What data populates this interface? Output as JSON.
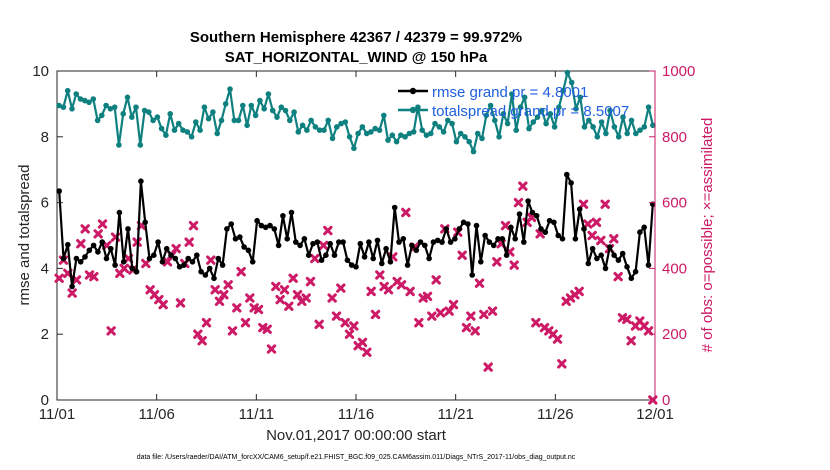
{
  "chart_data": {
    "type": "line",
    "title_line1": "Southern Hemisphere 42367 / 42379 = 99.972%",
    "title_line2": "SAT_HORIZONTAL_WIND @ 150 hPa",
    "xlabel": "Nov.01,2017 00:00:00 start",
    "ylabel_left": "rmse and totalspread",
    "ylabel_right": "# of obs: o=possible; ×=assimilated",
    "footer": "data file: /Users/raeder/DAI/ATM_forcXX/CAM6_setup/f.e21.FHIST_BGC.f09_025.CAM6assim.011/Diags_NTrS_2017-11/obs_diag_output.nc",
    "x_ticks": [
      "11/01",
      "11/06",
      "11/11",
      "11/16",
      "11/21",
      "11/26",
      "12/01"
    ],
    "y_left_ticks": [
      "0",
      "2",
      "4",
      "6",
      "8",
      "10"
    ],
    "y_right_ticks": [
      "0",
      "200",
      "400",
      "600",
      "800",
      "1000"
    ],
    "y_left_lim": [
      0,
      10
    ],
    "y_right_lim": [
      0,
      1000
    ],
    "x_lim": [
      0,
      30
    ],
    "colors": {
      "rmse": "#000000",
      "spread": "#0f8080",
      "obs": "#cc1a66",
      "legend_text": "#1f5fe0"
    },
    "series": [
      {
        "name": "rmse",
        "legend": "rmse grand pr = 4.8001",
        "values": [
          6.35,
          4.3,
          4.72,
          3.45,
          4.3,
          4.2,
          4.35,
          4.55,
          4.7,
          4.5,
          4.8,
          4.3,
          4.6,
          4.1,
          5.7,
          4.2,
          5.2,
          4.0,
          3.9,
          6.65,
          5.4,
          4.3,
          4.4,
          4.8,
          4.2,
          4.6,
          4.4,
          4.3,
          4.05,
          4.1,
          4.3,
          4.2,
          4.4,
          3.9,
          3.8,
          4.0,
          3.7,
          4.3,
          4.1,
          5.2,
          5.35,
          4.9,
          4.95,
          4.65,
          4.55,
          4.2,
          5.45,
          5.3,
          5.25,
          5.3,
          5.2,
          4.7,
          5.6,
          4.9,
          5.7,
          4.8,
          4.7,
          4.9,
          4.4,
          4.75,
          4.8,
          4.25,
          4.4,
          4.75,
          4.4,
          4.8,
          4.8,
          4.25,
          4.1,
          4.05,
          4.75,
          4.35,
          4.8,
          4.3,
          4.85,
          4.15,
          4.6,
          4.2,
          5.85,
          4.8,
          4.9,
          4.1,
          4.7,
          4.55,
          4.8,
          4.7,
          4.3,
          4.8,
          4.85,
          4.8,
          5.2,
          4.8,
          4.9,
          5.2,
          5.4,
          5.35,
          3.8,
          5.3,
          4.2,
          5.0,
          4.8,
          4.7,
          4.9,
          4.9,
          4.4,
          5.25,
          4.9,
          5.65,
          4.8,
          6.05,
          5.7,
          5.6,
          5.2,
          5.1,
          5.45,
          5.4,
          5.0,
          4.9,
          6.85,
          6.6,
          4.9,
          5.8,
          5.2,
          4.15,
          4.6,
          4.3,
          4.4,
          4.0,
          4.65,
          4.4,
          4.25,
          4.45,
          4.05,
          3.7,
          3.9,
          5.1,
          5.25,
          4.1,
          5.95
        ]
      },
      {
        "name": "totalspread",
        "legend": "totalspread grand pr = 8.5007",
        "values": [
          8.95,
          8.9,
          9.4,
          8.85,
          9.3,
          9.15,
          9.1,
          9.05,
          9.15,
          8.5,
          8.65,
          8.95,
          8.85,
          8.9,
          7.75,
          8.7,
          9.2,
          8.6,
          8.9,
          7.75,
          8.8,
          8.75,
          8.5,
          8.6,
          8.25,
          8.05,
          8.7,
          8.2,
          8.4,
          8.2,
          8.15,
          8.0,
          8.45,
          8.2,
          8.9,
          8.55,
          8.75,
          8.1,
          8.5,
          9.0,
          9.45,
          8.5,
          8.5,
          8.95,
          8.35,
          8.95,
          8.65,
          9.1,
          8.85,
          9.3,
          8.8,
          8.6,
          8.9,
          8.8,
          8.5,
          8.75,
          8.15,
          8.35,
          8.2,
          8.5,
          8.3,
          8.2,
          8.2,
          8.5,
          7.95,
          8.3,
          8.4,
          8.45,
          8.0,
          7.65,
          8.1,
          8.3,
          8.1,
          8.15,
          8.25,
          8.2,
          8.65,
          7.9,
          8.05,
          7.85,
          8.05,
          8.0,
          8.1,
          8.15,
          8.9,
          8.2,
          8.05,
          8.1,
          8.4,
          8.3,
          8.15,
          8.5,
          8.4,
          7.85,
          8.1,
          8.0,
          7.85,
          7.55,
          8.1,
          7.95,
          8.65,
          8.95,
          8.5,
          8.0,
          8.7,
          8.4,
          9.3,
          8.2,
          8.9,
          9.2,
          8.25,
          8.45,
          8.6,
          8.8,
          8.4,
          8.7,
          8.3,
          8.9,
          9.4,
          9.95,
          9.65,
          8.85,
          9.2,
          8.3,
          8.5,
          8.3,
          8.0,
          8.45,
          8.1,
          8.8,
          8.3,
          8.0,
          8.6,
          8.1,
          8.5,
          8.1,
          8.2,
          8.3,
          8.9,
          8.35
        ]
      }
    ],
    "obs_assimilated": [
      370,
      425,
      385,
      325,
      365,
      475,
      520,
      380,
      375,
      505,
      535,
      470,
      210,
      495,
      385,
      400,
      430,
      395,
      480,
      530,
      415,
      335,
      320,
      305,
      290,
      420,
      440,
      460,
      295,
      415,
      480,
      530,
      200,
      180,
      235,
      425,
      335,
      300,
      320,
      350,
      210,
      280,
      390,
      235,
      310,
      280,
      275,
      220,
      215,
      155,
      345,
      305,
      335,
      285,
      370,
      320,
      300,
      310,
      360,
      430,
      230,
      470,
      515,
      310,
      255,
      340,
      235,
      200,
      225,
      165,
      175,
      145,
      330,
      260,
      380,
      345,
      335,
      435,
      360,
      350,
      570,
      330,
      465,
      235,
      310,
      315,
      255,
      365,
      265,
      520,
      270,
      290,
      510,
      440,
      220,
      255,
      210,
      355,
      260,
      100,
      270,
      420,
      475,
      530,
      450,
      410,
      600,
      650,
      540,
      555,
      235,
      505,
      220,
      210,
      200,
      185,
      110,
      300,
      310,
      320,
      330,
      595,
      535,
      500,
      540,
      485,
      595,
      460,
      490,
      375,
      250,
      245,
      180,
      225,
      240,
      225,
      210,
      0
    ]
  }
}
